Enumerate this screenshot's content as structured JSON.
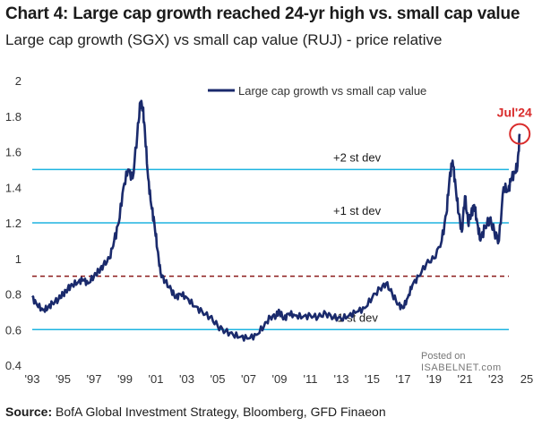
{
  "title": "Chart 4: Large cap growth reached 24-yr high vs. small cap value",
  "subtitle": "Large cap growth (SGX) vs small cap value (RUJ) - price relative",
  "source_label": "Source:",
  "source_text": " BofA Global Investment Strategy, Bloomberg, GFD Finaeon",
  "watermark": {
    "line1": "Posted on",
    "line2": "ISABELNET.com"
  },
  "colors": {
    "series": "#1a2a6c",
    "stdev": "#1eb4e0",
    "mean": "#8b1a1a",
    "highlight": "#d92b2b"
  },
  "chart_data": {
    "type": "line",
    "title": "Chart 4: Large cap growth reached 24-yr high vs. small cap value",
    "subtitle": "Large cap growth (SGX) vs small cap value (RUJ) - price relative",
    "xlim": [
      1993,
      2025
    ],
    "ylim": [
      0.4,
      2.0
    ],
    "x_ticks": [
      1993,
      1995,
      1997,
      1999,
      2001,
      2003,
      2005,
      2007,
      2009,
      2011,
      2013,
      2015,
      2017,
      2019,
      2021,
      2023,
      2025
    ],
    "x_tick_labels": [
      "'93",
      "'95",
      "'97",
      "'99",
      "'01",
      "'03",
      "'05",
      "'07",
      "'09",
      "'11",
      "'13",
      "'15",
      "'17",
      "'19",
      "'21",
      "'23",
      "25"
    ],
    "y_ticks": [
      0.4,
      0.6,
      0.8,
      1.0,
      1.2,
      1.4,
      1.6,
      1.8,
      2.0
    ],
    "y_tick_labels": [
      "0.4",
      "0.6",
      "0.8",
      "1",
      "1.2",
      "1.4",
      "1.6",
      "1.8",
      "2"
    ],
    "grid": false,
    "legend": {
      "position": "top-center"
    },
    "series": [
      {
        "name": "Large cap growth vs small cap value",
        "x": [
          1993.0,
          1993.3,
          1993.7,
          1994.0,
          1994.3,
          1994.7,
          1995.0,
          1995.3,
          1995.6,
          1996.0,
          1996.3,
          1996.6,
          1997.0,
          1997.3,
          1997.6,
          1998.0,
          1998.3,
          1998.6,
          1998.9,
          1999.2,
          1999.5,
          1999.8,
          2000.0,
          2000.15,
          2000.3,
          2000.5,
          2000.7,
          2000.9,
          2001.1,
          2001.3,
          2001.6,
          2002.0,
          2002.3,
          2002.6,
          2003.0,
          2003.5,
          2004.0,
          2004.5,
          2005.0,
          2005.5,
          2006.0,
          2006.5,
          2007.0,
          2007.5,
          2008.0,
          2008.4,
          2008.8,
          2009.0,
          2009.3,
          2009.6,
          2010.0,
          2010.5,
          2011.0,
          2011.5,
          2012.0,
          2012.5,
          2013.0,
          2013.5,
          2014.0,
          2014.5,
          2015.0,
          2015.5,
          2015.9,
          2016.3,
          2016.7,
          2017.0,
          2017.3,
          2017.6,
          2018.0,
          2018.5,
          2019.0,
          2019.5,
          2019.8,
          2020.0,
          2020.2,
          2020.4,
          2020.6,
          2020.8,
          2021.0,
          2021.2,
          2021.4,
          2021.6,
          2021.8,
          2022.0,
          2022.3,
          2022.6,
          2022.9,
          2023.2,
          2023.5,
          2023.8,
          2024.0,
          2024.2,
          2024.4,
          2024.55
        ],
        "y": [
          0.78,
          0.74,
          0.71,
          0.72,
          0.75,
          0.77,
          0.8,
          0.83,
          0.85,
          0.87,
          0.88,
          0.86,
          0.9,
          0.93,
          0.96,
          1.0,
          1.1,
          1.2,
          1.4,
          1.5,
          1.45,
          1.7,
          1.88,
          1.85,
          1.7,
          1.45,
          1.3,
          1.2,
          1.05,
          0.92,
          0.87,
          0.82,
          0.78,
          0.8,
          0.78,
          0.73,
          0.7,
          0.67,
          0.62,
          0.59,
          0.57,
          0.56,
          0.55,
          0.57,
          0.62,
          0.67,
          0.68,
          0.7,
          0.66,
          0.69,
          0.68,
          0.67,
          0.68,
          0.67,
          0.69,
          0.67,
          0.66,
          0.68,
          0.7,
          0.72,
          0.78,
          0.83,
          0.86,
          0.8,
          0.74,
          0.72,
          0.78,
          0.85,
          0.9,
          0.97,
          1.0,
          1.1,
          1.25,
          1.45,
          1.55,
          1.4,
          1.25,
          1.15,
          1.35,
          1.2,
          1.25,
          1.3,
          1.2,
          1.1,
          1.18,
          1.22,
          1.15,
          1.1,
          1.4,
          1.38,
          1.45,
          1.48,
          1.52,
          1.7
        ]
      }
    ],
    "reference_lines": [
      {
        "y": 1.5,
        "label": "+2 st dev",
        "style": "solid"
      },
      {
        "y": 1.2,
        "label": "+1 st dev",
        "style": "solid"
      },
      {
        "y": 0.6,
        "label": "-1 st dev",
        "style": "solid"
      },
      {
        "y": 0.9,
        "label": "",
        "style": "dashed"
      }
    ],
    "annotations": [
      {
        "text": "Jul'24",
        "x": 2024.55,
        "y": 1.7
      }
    ]
  }
}
